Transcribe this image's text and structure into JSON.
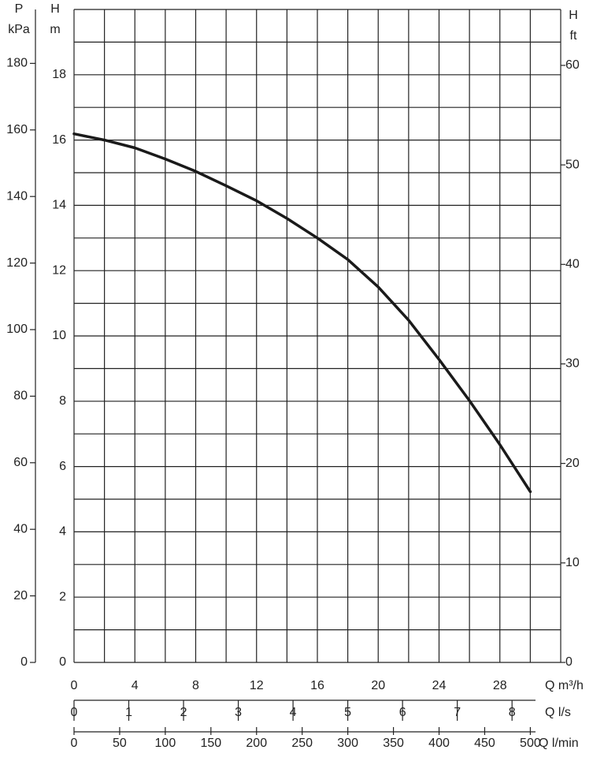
{
  "chart_data": {
    "type": "line",
    "x_label": "Q m³/h",
    "xlim": [
      0,
      32
    ],
    "xticks": [
      0,
      4,
      8,
      12,
      16,
      20,
      24,
      28
    ],
    "xgrid": [
      0,
      2,
      4,
      6,
      8,
      10,
      12,
      14,
      16,
      18,
      20,
      22,
      24,
      26,
      28,
      30,
      32
    ],
    "x2_label": "Q l/s",
    "x2lim": [
      0,
      8.889
    ],
    "x2ticks": [
      0,
      1,
      2,
      3,
      4,
      5,
      6,
      7,
      8
    ],
    "x3_label": "Q l/min",
    "x3lim": [
      0,
      533.3
    ],
    "x3ticks": [
      0,
      50,
      100,
      150,
      200,
      250,
      300,
      350,
      400,
      450,
      500
    ],
    "y_label": [
      "H",
      "m"
    ],
    "ylim": [
      0,
      20
    ],
    "yticks": [
      0,
      2,
      4,
      6,
      8,
      10,
      12,
      14,
      16,
      18
    ],
    "ygrid": [
      0,
      1,
      2,
      3,
      4,
      5,
      6,
      7,
      8,
      9,
      10,
      11,
      12,
      13,
      14,
      15,
      16,
      17,
      18,
      19,
      20
    ],
    "y2_label": [
      "H",
      "ft"
    ],
    "y2lim": [
      0,
      65.62
    ],
    "y2ticks": [
      0,
      10,
      20,
      30,
      40,
      50,
      60
    ],
    "y3_label": [
      "P",
      "kPa"
    ],
    "y3lim": [
      0,
      196.2
    ],
    "y3ticks": [
      0,
      20,
      40,
      60,
      80,
      100,
      120,
      140,
      160,
      180
    ],
    "grid": true,
    "series": [
      {
        "color": "#1a1a1a",
        "x": [
          0,
          2,
          4,
          6,
          8,
          10,
          12,
          14,
          16,
          18,
          20,
          22,
          24,
          26,
          28,
          30
        ],
        "values": [
          16.19,
          16.0,
          15.76,
          15.42,
          15.04,
          14.6,
          14.14,
          13.6,
          13.0,
          12.34,
          11.5,
          10.48,
          9.28,
          8.02,
          6.67,
          5.23
        ]
      }
    ]
  }
}
